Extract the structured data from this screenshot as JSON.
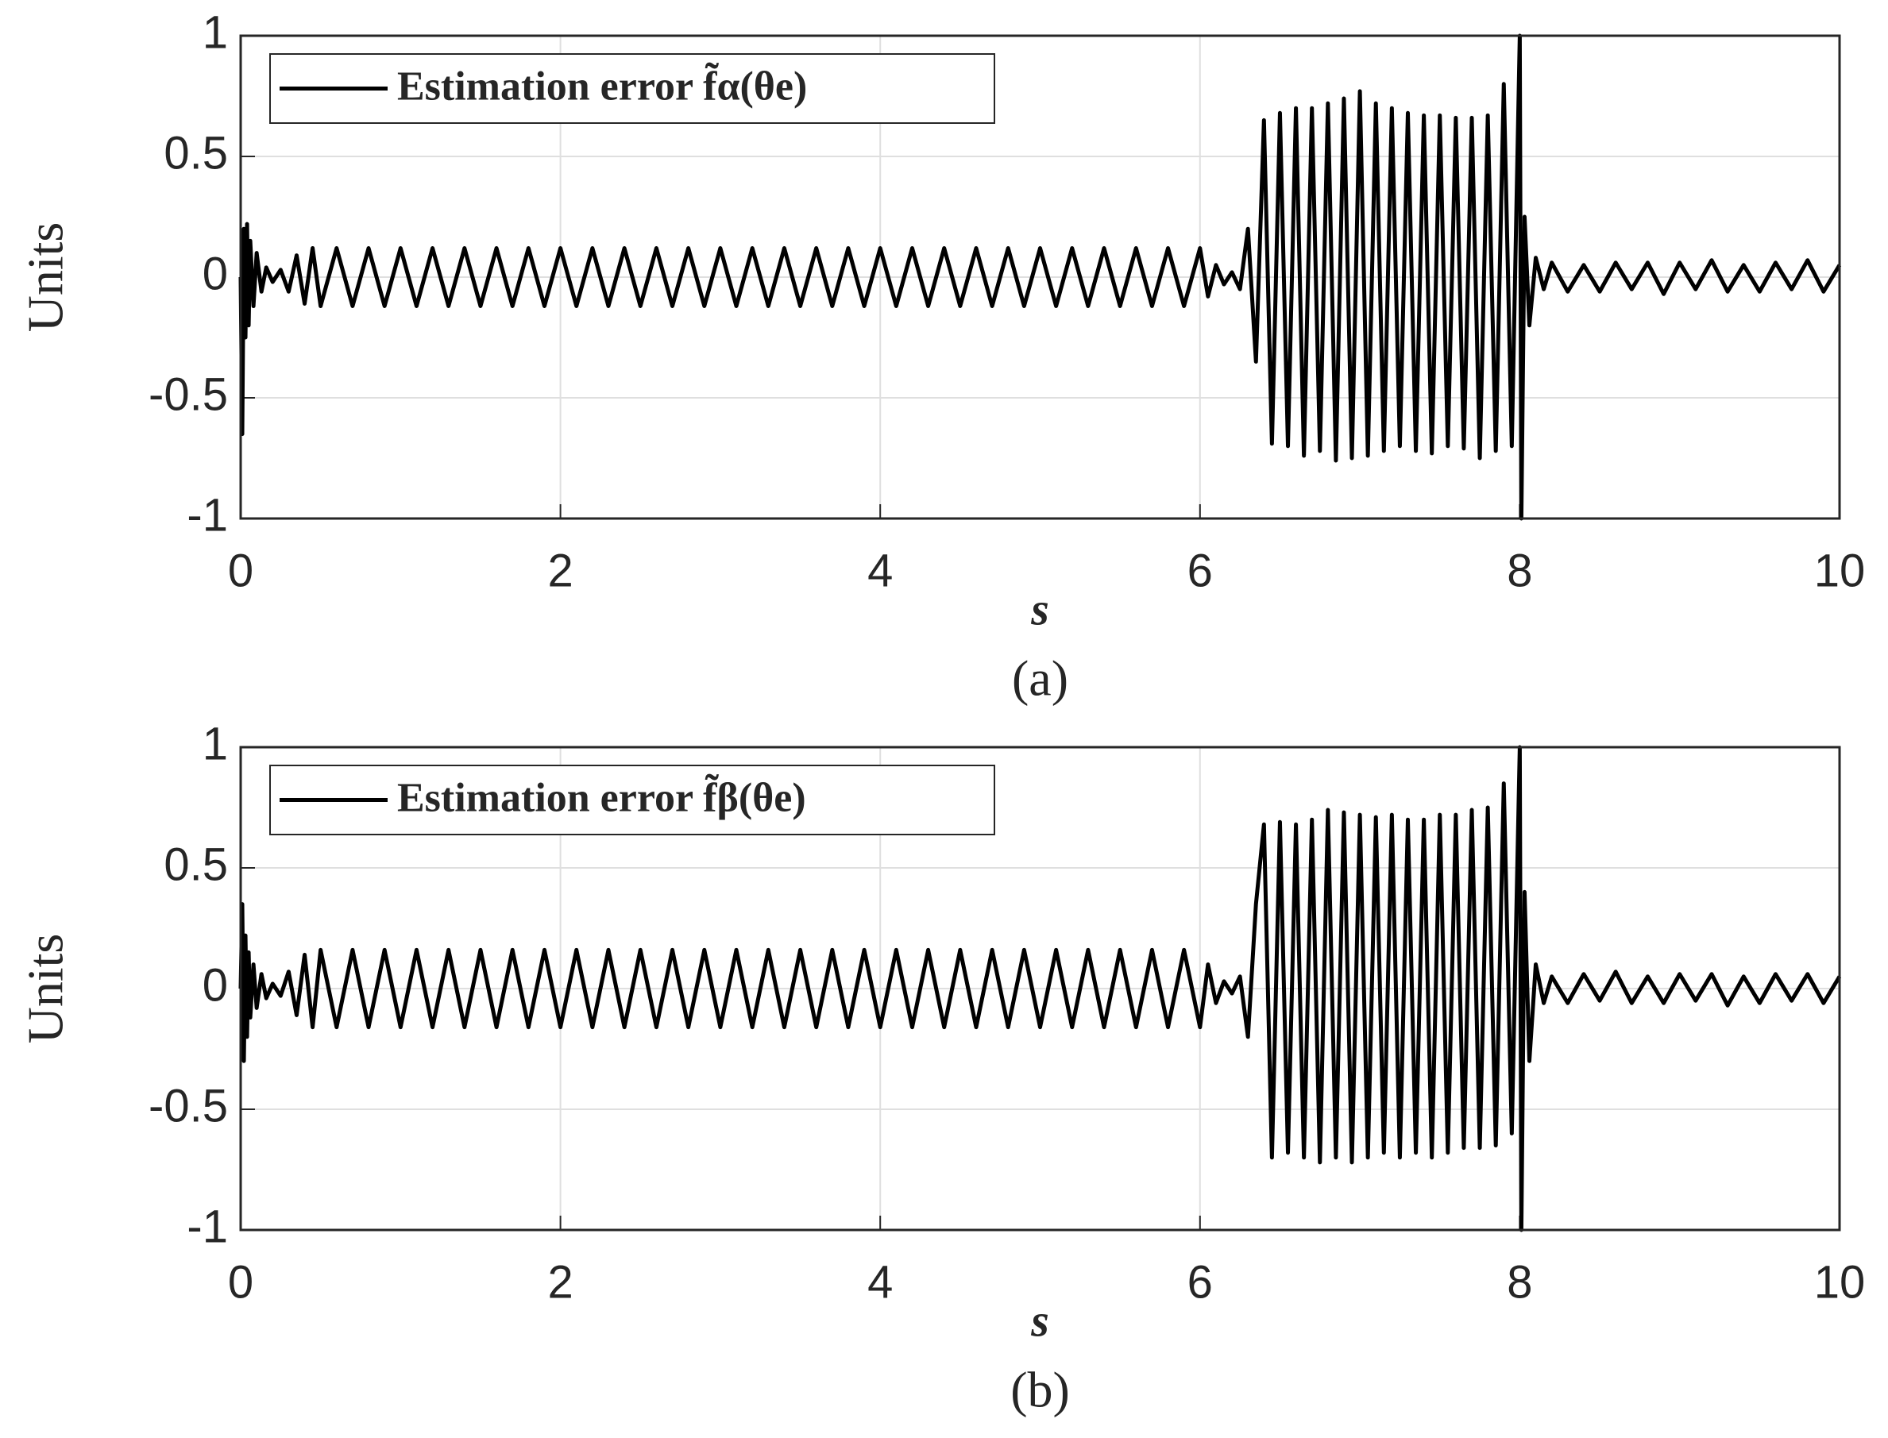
{
  "chart_data": [
    {
      "type": "line",
      "xlabel": "s",
      "ylabel": "Units",
      "caption": "(a)",
      "xlim": [
        0,
        10
      ],
      "ylim": [
        -1,
        1
      ],
      "xticks": [
        0,
        2,
        4,
        6,
        8,
        10
      ],
      "yticks": [
        -1,
        -0.5,
        0,
        0.5,
        1
      ],
      "grid": true,
      "legend": "upper left",
      "x": [
        0,
        0.01,
        0.02,
        0.03,
        0.04,
        0.05,
        0.06,
        0.08,
        0.1,
        0.13,
        0.16,
        0.2,
        0.25,
        0.3,
        0.35,
        0.4,
        0.45,
        0.5,
        0.6,
        0.7,
        0.8,
        0.9,
        1.0,
        1.1,
        1.2,
        1.3,
        1.4,
        1.5,
        1.6,
        1.7,
        1.8,
        1.9,
        2.0,
        2.1,
        2.2,
        2.3,
        2.4,
        2.5,
        2.6,
        2.7,
        2.8,
        2.9,
        3.0,
        3.1,
        3.2,
        3.3,
        3.4,
        3.5,
        3.6,
        3.7,
        3.8,
        3.9,
        4.0,
        4.1,
        4.2,
        4.3,
        4.4,
        4.5,
        4.6,
        4.7,
        4.8,
        4.9,
        5.0,
        5.1,
        5.2,
        5.3,
        5.4,
        5.5,
        5.6,
        5.7,
        5.8,
        5.9,
        6.0,
        6.05,
        6.1,
        6.15,
        6.2,
        6.25,
        6.3,
        6.35,
        6.4,
        6.45,
        6.5,
        6.55,
        6.6,
        6.65,
        6.7,
        6.75,
        6.8,
        6.85,
        6.9,
        6.95,
        7.0,
        7.05,
        7.1,
        7.15,
        7.2,
        7.25,
        7.3,
        7.35,
        7.4,
        7.45,
        7.5,
        7.55,
        7.6,
        7.65,
        7.7,
        7.75,
        7.8,
        7.85,
        7.9,
        7.95,
        8.0,
        8.01,
        8.03,
        8.06,
        8.1,
        8.15,
        8.2,
        8.3,
        8.4,
        8.5,
        8.6,
        8.7,
        8.8,
        8.9,
        9.0,
        9.1,
        9.2,
        9.3,
        9.4,
        9.5,
        9.6,
        9.7,
        9.8,
        9.9,
        10.0
      ],
      "series": [
        {
          "name": "Estimation error f̃α(θe)",
          "color": "#000000",
          "values": [
            0,
            -0.65,
            0.2,
            -0.25,
            0.22,
            -0.2,
            0.15,
            -0.12,
            0.1,
            -0.06,
            0.04,
            -0.02,
            0.03,
            -0.06,
            0.09,
            -0.11,
            0.12,
            -0.12,
            0.12,
            -0.12,
            0.12,
            -0.12,
            0.12,
            -0.12,
            0.12,
            -0.12,
            0.12,
            -0.12,
            0.12,
            -0.12,
            0.12,
            -0.12,
            0.12,
            -0.12,
            0.12,
            -0.12,
            0.12,
            -0.12,
            0.12,
            -0.12,
            0.12,
            -0.12,
            0.12,
            -0.12,
            0.12,
            -0.12,
            0.12,
            -0.12,
            0.12,
            -0.12,
            0.12,
            -0.12,
            0.12,
            -0.12,
            0.12,
            -0.12,
            0.12,
            -0.12,
            0.12,
            -0.12,
            0.12,
            -0.12,
            0.12,
            -0.12,
            0.12,
            -0.12,
            0.12,
            -0.12,
            0.12,
            -0.12,
            0.12,
            -0.12,
            0.12,
            -0.08,
            0.05,
            -0.03,
            0.02,
            -0.05,
            0.2,
            -0.35,
            0.65,
            -0.69,
            0.68,
            -0.7,
            0.7,
            -0.74,
            0.7,
            -0.72,
            0.72,
            -0.76,
            0.74,
            -0.75,
            0.77,
            -0.74,
            0.72,
            -0.72,
            0.7,
            -0.7,
            0.68,
            -0.72,
            0.67,
            -0.73,
            0.67,
            -0.7,
            0.66,
            -0.71,
            0.66,
            -0.75,
            0.67,
            -0.72,
            0.8,
            -0.7,
            1,
            -1,
            0.25,
            -0.2,
            0.08,
            -0.05,
            0.06,
            -0.06,
            0.05,
            -0.06,
            0.06,
            -0.05,
            0.06,
            -0.07,
            0.06,
            -0.05,
            0.07,
            -0.06,
            0.05,
            -0.06,
            0.06,
            -0.05,
            0.07,
            -0.06,
            0.05
          ]
        }
      ]
    },
    {
      "type": "line",
      "xlabel": "s",
      "ylabel": "Units",
      "caption": "(b)",
      "xlim": [
        0,
        10
      ],
      "ylim": [
        -1,
        1
      ],
      "xticks": [
        0,
        2,
        4,
        6,
        8,
        10
      ],
      "yticks": [
        -1,
        -0.5,
        0,
        0.5,
        1
      ],
      "grid": true,
      "legend": "upper left",
      "x": [
        0,
        0.01,
        0.02,
        0.03,
        0.04,
        0.05,
        0.06,
        0.08,
        0.1,
        0.13,
        0.16,
        0.2,
        0.25,
        0.3,
        0.35,
        0.4,
        0.45,
        0.5,
        0.6,
        0.7,
        0.8,
        0.9,
        1.0,
        1.1,
        1.2,
        1.3,
        1.4,
        1.5,
        1.6,
        1.7,
        1.8,
        1.9,
        2.0,
        2.1,
        2.2,
        2.3,
        2.4,
        2.5,
        2.6,
        2.7,
        2.8,
        2.9,
        3.0,
        3.1,
        3.2,
        3.3,
        3.4,
        3.5,
        3.6,
        3.7,
        3.8,
        3.9,
        4.0,
        4.1,
        4.2,
        4.3,
        4.4,
        4.5,
        4.6,
        4.7,
        4.8,
        4.9,
        5.0,
        5.1,
        5.2,
        5.3,
        5.4,
        5.5,
        5.6,
        5.7,
        5.8,
        5.9,
        6.0,
        6.05,
        6.1,
        6.15,
        6.2,
        6.25,
        6.3,
        6.35,
        6.4,
        6.45,
        6.5,
        6.55,
        6.6,
        6.65,
        6.7,
        6.75,
        6.8,
        6.85,
        6.9,
        6.95,
        7.0,
        7.05,
        7.1,
        7.15,
        7.2,
        7.25,
        7.3,
        7.35,
        7.4,
        7.45,
        7.5,
        7.55,
        7.6,
        7.65,
        7.7,
        7.75,
        7.8,
        7.85,
        7.9,
        7.95,
        8.0,
        8.01,
        8.03,
        8.06,
        8.1,
        8.15,
        8.2,
        8.3,
        8.4,
        8.5,
        8.6,
        8.7,
        8.8,
        8.9,
        9.0,
        9.1,
        9.2,
        9.3,
        9.4,
        9.5,
        9.6,
        9.7,
        9.8,
        9.9,
        10.0
      ],
      "series": [
        {
          "name": "Estimation error f̃β(θe)",
          "color": "#000000",
          "values": [
            0,
            0.35,
            -0.3,
            0.22,
            -0.2,
            0.15,
            -0.12,
            0.1,
            -0.08,
            0.06,
            -0.04,
            0.02,
            -0.03,
            0.07,
            -0.11,
            0.14,
            -0.16,
            0.16,
            -0.16,
            0.16,
            -0.16,
            0.16,
            -0.16,
            0.16,
            -0.16,
            0.16,
            -0.16,
            0.16,
            -0.16,
            0.16,
            -0.16,
            0.16,
            -0.16,
            0.16,
            -0.16,
            0.16,
            -0.16,
            0.16,
            -0.16,
            0.16,
            -0.16,
            0.16,
            -0.16,
            0.16,
            -0.16,
            0.16,
            -0.16,
            0.16,
            -0.16,
            0.16,
            -0.16,
            0.16,
            -0.16,
            0.16,
            -0.16,
            0.16,
            -0.16,
            0.16,
            -0.16,
            0.16,
            -0.16,
            0.16,
            -0.16,
            0.16,
            -0.16,
            0.16,
            -0.16,
            0.16,
            -0.16,
            0.16,
            -0.16,
            0.16,
            -0.16,
            0.1,
            -0.06,
            0.03,
            -0.02,
            0.05,
            -0.2,
            0.35,
            0.68,
            -0.7,
            0.69,
            -0.68,
            0.68,
            -0.7,
            0.7,
            -0.72,
            0.74,
            -0.7,
            0.73,
            -0.72,
            0.72,
            -0.7,
            0.71,
            -0.68,
            0.72,
            -0.7,
            0.7,
            -0.68,
            0.7,
            -0.7,
            0.72,
            -0.68,
            0.72,
            -0.66,
            0.74,
            -0.66,
            0.75,
            -0.65,
            0.85,
            -0.6,
            1,
            -1,
            0.4,
            -0.3,
            0.1,
            -0.06,
            0.05,
            -0.06,
            0.06,
            -0.05,
            0.07,
            -0.06,
            0.05,
            -0.06,
            0.06,
            -0.05,
            0.06,
            -0.07,
            0.05,
            -0.06,
            0.06,
            -0.05,
            0.06,
            -0.06,
            0.05
          ]
        }
      ]
    }
  ]
}
